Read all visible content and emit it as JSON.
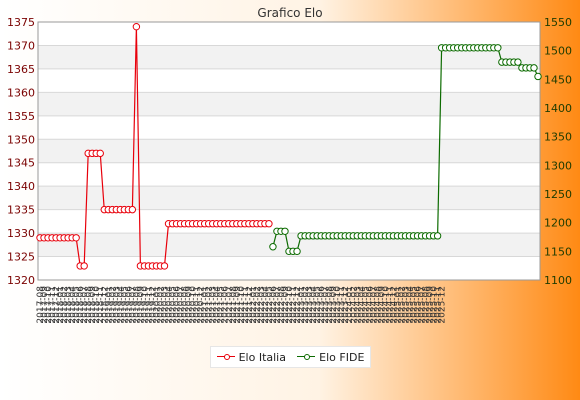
{
  "chart_data": {
    "type": "line",
    "title": "Grafico Elo",
    "xlabel": "",
    "ylabel": "",
    "y_left": {
      "min": 1320,
      "max": 1375,
      "step": 5
    },
    "y_right": {
      "min": 1100,
      "max": 1550,
      "step": 50
    },
    "x": [
      "2017-08",
      "2017-09",
      "2017-10",
      "2017-11",
      "2017-12",
      "2018-01",
      "2018-02",
      "2018-03",
      "2018-04",
      "2018-05",
      "2018-06",
      "2018-07",
      "2018-08",
      "2018-09",
      "2018-10",
      "2018-11",
      "2018-12",
      "2019-01",
      "2019-02",
      "2019-03",
      "2019-04",
      "2019-05",
      "2019-06",
      "2019-07",
      "2019-08",
      "2019-09",
      "2019-10",
      "2019-11",
      "2019-12",
      "2020-01",
      "2020-02",
      "2020-03",
      "2020-04",
      "2020-05",
      "2020-06",
      "2020-07",
      "2020-08",
      "2020-09",
      "2020-10",
      "2020-11",
      "2020-12",
      "2021-01",
      "2021-02",
      "2021-03",
      "2021-04",
      "2021-05",
      "2021-06",
      "2021-07",
      "2021-08",
      "2021-09",
      "2021-10",
      "2021-11",
      "2021-12",
      "2022-01",
      "2022-02",
      "2022-03",
      "2022-04",
      "2022-05",
      "2022-06",
      "2022-07",
      "2022-08",
      "2022-09",
      "2022-10",
      "2022-11",
      "2022-12",
      "2023-01",
      "2023-02",
      "2023-03",
      "2023-04",
      "2023-05",
      "2023-06",
      "2023-07",
      "2023-08",
      "2023-09",
      "2023-10",
      "2023-11",
      "2023-12",
      "2024-01",
      "2024-02",
      "2024-03",
      "2024-04",
      "2024-05",
      "2024-06",
      "2024-07",
      "2024-08",
      "2024-09",
      "2024-10",
      "2024-11",
      "2024-12",
      "2025-01",
      "2025-02",
      "2025-03",
      "2025-04",
      "2025-05",
      "2025-06",
      "2025-07",
      "2025-08",
      "2025-09",
      "2025-10",
      "2025-11",
      "2025-12"
    ],
    "series": [
      {
        "name": "Elo Italia",
        "axis": "left",
        "color": "#e8000b",
        "values": [
          1329,
          1329,
          1329,
          1329,
          1329,
          1329,
          1329,
          1329,
          1329,
          1329,
          1323,
          1323,
          1347,
          1347,
          1347,
          1347,
          1335,
          1335,
          1335,
          1335,
          1335,
          1335,
          1335,
          1335,
          1374,
          1323,
          1323,
          1323,
          1323,
          1323,
          1323,
          1323,
          1332,
          1332,
          1332,
          1332,
          1332,
          1332,
          1332,
          1332,
          1332,
          1332,
          1332,
          1332,
          1332,
          1332,
          1332,
          1332,
          1332,
          1332,
          1332,
          1332,
          1332,
          1332,
          1332,
          1332,
          1332,
          1332,
          null,
          null,
          null,
          null,
          null,
          null,
          null,
          null,
          null,
          null,
          null,
          null,
          null,
          null,
          null,
          null,
          null,
          null,
          null,
          null,
          null,
          null,
          null,
          null,
          null,
          null,
          null,
          null,
          null,
          null,
          null,
          null,
          null,
          null,
          null,
          null,
          null,
          null,
          null,
          null,
          null,
          null,
          null
        ]
      },
      {
        "name": "Elo FIDE",
        "axis": "right",
        "color": "#0c6b00",
        "values": [
          null,
          null,
          null,
          null,
          null,
          null,
          null,
          null,
          null,
          null,
          null,
          null,
          null,
          null,
          null,
          null,
          null,
          null,
          null,
          null,
          null,
          null,
          null,
          null,
          null,
          null,
          null,
          null,
          null,
          null,
          null,
          null,
          null,
          null,
          null,
          null,
          null,
          null,
          null,
          null,
          null,
          null,
          null,
          null,
          null,
          null,
          null,
          null,
          null,
          null,
          null,
          null,
          null,
          null,
          null,
          null,
          null,
          null,
          1158,
          1185,
          1185,
          1185,
          1150,
          1150,
          1150,
          1177,
          1177,
          1177,
          1177,
          1177,
          1177,
          1177,
          1177,
          1177,
          1177,
          1177,
          1177,
          1177,
          1177,
          1177,
          1177,
          1177,
          1177,
          1177,
          1177,
          1177,
          1177,
          1177,
          1177,
          1177,
          1177,
          1177,
          1177,
          1177,
          1177,
          1177,
          1177,
          1177,
          1177,
          1177,
          1505
        ]
      }
    ],
    "extra_fide_tail": [
      1505,
      1505,
      1505,
      1505,
      1505,
      1505,
      1505,
      1505,
      1505,
      1505,
      1505,
      1505,
      1505,
      1505,
      1480,
      1480,
      1480,
      1480,
      1480,
      1470,
      1470,
      1470,
      1470,
      1455
    ],
    "tick_labels": [
      "2017-08",
      "2017-09",
      "2017-10",
      "2017-11",
      "2017-12",
      "2018-01",
      "2018-02",
      "2018-03",
      "2018-04",
      "2018-05",
      "2018-06",
      "2018-07",
      "2018-08",
      "2018-09",
      "2018-10",
      "2018-11",
      "2018-12",
      "2019-01",
      "2019-02",
      "2019-03",
      "2019-04",
      "2019-05",
      "2019-06",
      "2019-07",
      "2019-08",
      "2019-09",
      "2019-10",
      "2019-11",
      "2019-12",
      "2020-01",
      "2020-02",
      "2020-03",
      "2020-04",
      "2020-05",
      "2020-06",
      "2020-07",
      "2020-08",
      "2020-09",
      "2020-10",
      "2020-11",
      "2020-12",
      "2021-01",
      "2021-02",
      "2021-03",
      "2021-04",
      "2021-05",
      "2021-06",
      "2021-07",
      "2021-08",
      "2021-09",
      "2021-10",
      "2021-11",
      "2021-12",
      "2022-01",
      "2022-02",
      "2022-03",
      "2022-04",
      "2022-05",
      "2022-06",
      "2022-07",
      "2022-08",
      "2022-09",
      "2022-10",
      "2022-11",
      "2022-12",
      "2023-01",
      "2023-02",
      "2023-03",
      "2023-04",
      "2023-05",
      "2023-06",
      "2023-07",
      "2023-08",
      "2023-09",
      "2023-10",
      "2023-11",
      "2023-12",
      "2024-01",
      "2024-02",
      "2024-03",
      "2024-04",
      "2024-05",
      "2024-06",
      "2024-07",
      "2024-08",
      "2024-09",
      "2024-10",
      "2024-11",
      "2024-12",
      "2025-01",
      "2025-02",
      "2025-03",
      "2025-04",
      "2025-05",
      "2025-06",
      "2025-07",
      "2025-08",
      "2025-09",
      "2025-10",
      "2025-11",
      "2025-12"
    ],
    "grid": true,
    "legend_position": "bottom"
  },
  "legend": {
    "italia": "Elo Italia",
    "fide": "Elo FIDE"
  }
}
